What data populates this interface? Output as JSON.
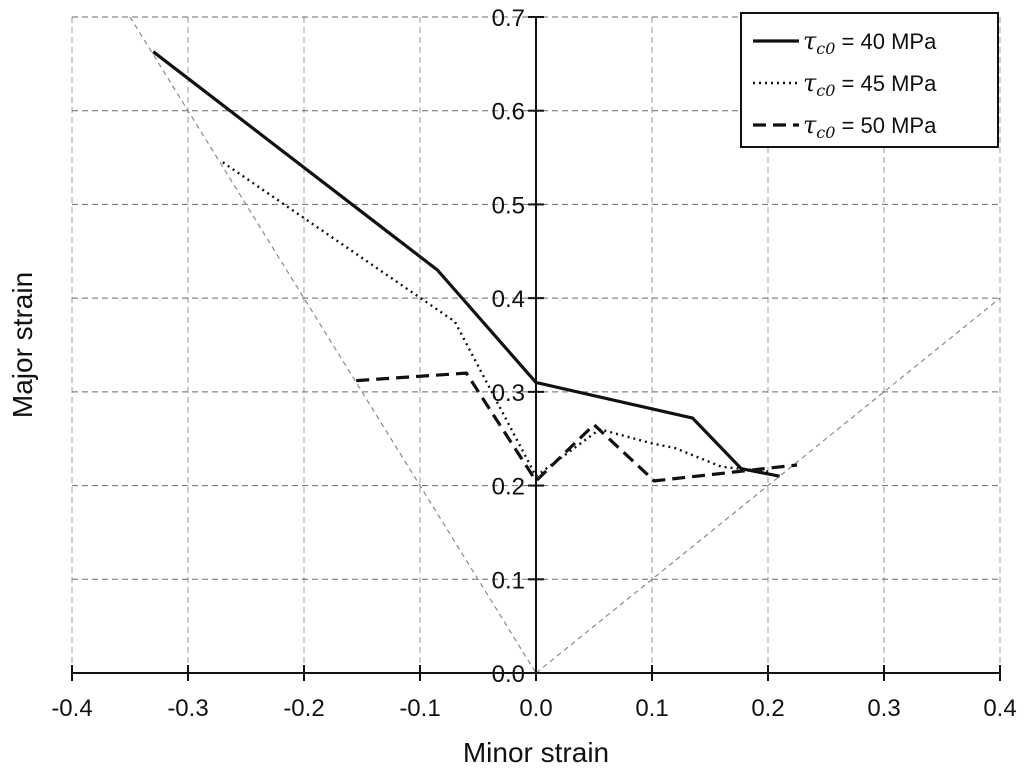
{
  "chart_data": {
    "type": "line",
    "title": "",
    "xlabel": "Minor strain",
    "ylabel": "Major strain",
    "xlim": [
      -0.4,
      0.4
    ],
    "ylim": [
      0.0,
      0.7
    ],
    "xticks": [
      "-0.4",
      "-0.3",
      "-0.2",
      "-0.1",
      "0.0",
      "0.1",
      "0.2",
      "0.3",
      "0.4"
    ],
    "yticks": [
      "0.0",
      "0.1",
      "0.2",
      "0.3",
      "0.4",
      "0.5",
      "0.6",
      "0.7"
    ],
    "grid": true,
    "legend_position": "top-right",
    "series": [
      {
        "name": "τc0 = 40 MPa",
        "legend_symbol": "τ",
        "legend_subscript": "c0",
        "legend_suffix": " = 40 MPa",
        "style": "solid",
        "x": [
          -0.33,
          -0.085,
          0.0,
          0.135,
          0.177,
          0.21
        ],
        "y": [
          0.663,
          0.43,
          0.31,
          0.272,
          0.218,
          0.21
        ]
      },
      {
        "name": "τc0 = 45 MPa",
        "legend_symbol": "τ",
        "legend_subscript": "c0",
        "legend_suffix": " = 45 MPa",
        "style": "dotted",
        "x": [
          -0.27,
          -0.07,
          0.0,
          0.055,
          0.1,
          0.12,
          0.16,
          0.2
        ],
        "y": [
          0.545,
          0.375,
          0.21,
          0.26,
          0.245,
          0.24,
          0.22,
          0.215
        ]
      },
      {
        "name": "τc0 = 50 MPa",
        "legend_symbol": "τ",
        "legend_subscript": "c0",
        "legend_suffix": " = 50 MPa",
        "style": "dashed",
        "x": [
          -0.155,
          -0.06,
          0.0,
          0.05,
          0.102,
          0.225
        ],
        "y": [
          0.312,
          0.32,
          0.205,
          0.265,
          0.205,
          0.222
        ]
      }
    ],
    "reference_lines": [
      {
        "style": "thin-dashed",
        "x": [
          -0.35,
          0.0
        ],
        "y": [
          0.7,
          0.0
        ]
      },
      {
        "style": "thin-dashed",
        "x": [
          0.0,
          0.4
        ],
        "y": [
          0.0,
          0.4
        ]
      }
    ]
  }
}
